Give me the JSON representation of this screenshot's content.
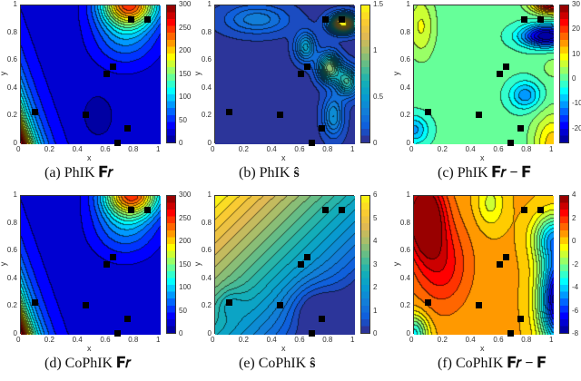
{
  "chart_data": [
    {
      "id": "a",
      "type": "heatmap",
      "caption": "(a) PhIK F_r",
      "caption_label": "(a) PhIK",
      "caption_math": "𝐅𝑟",
      "xlabel": "x",
      "ylabel": "y",
      "xlim": [
        0,
        1
      ],
      "ylim": [
        0,
        1
      ],
      "xticks": [
        "0",
        "0.2",
        "0.4",
        "0.6",
        "0.8",
        "1"
      ],
      "yticks": [
        "0",
        "0.2",
        "0.4",
        "0.6",
        "0.8",
        "1"
      ],
      "colorbar": {
        "range": [
          0,
          300
        ],
        "ticks": [
          "0",
          "50",
          "100",
          "150",
          "200",
          "250",
          "300"
        ]
      },
      "colormap": "jet"
    },
    {
      "id": "b",
      "type": "heatmap",
      "caption": "(b) PhIK ŝ",
      "caption_label": "(b) PhIK",
      "caption_math": "ŝ",
      "xlabel": "x",
      "ylabel": "y",
      "xlim": [
        0,
        1
      ],
      "ylim": [
        0,
        1
      ],
      "xticks": [
        "0",
        "0.2",
        "0.4",
        "0.6",
        "0.8",
        "1"
      ],
      "yticks": [
        "0",
        "0.2",
        "0.4",
        "0.6",
        "0.8",
        "1"
      ],
      "colorbar": {
        "range": [
          0,
          1.5
        ],
        "ticks": [
          "0",
          "0.5",
          "1",
          "1.5"
        ]
      },
      "colormap": "parula"
    },
    {
      "id": "c",
      "type": "heatmap",
      "caption": "(c) PhIK F_r − F",
      "caption_label": "(c) PhIK",
      "caption_math": "𝐅𝑟 − 𝐅",
      "xlabel": "x",
      "ylabel": "y",
      "xlim": [
        0,
        1
      ],
      "ylim": [
        0,
        1
      ],
      "xticks": [
        "0",
        "0.2",
        "0.4",
        "0.6",
        "0.8",
        "1"
      ],
      "yticks": [
        "0",
        "0.2",
        "0.4",
        "0.6",
        "0.8",
        "1"
      ],
      "colorbar": {
        "range": [
          -26,
          30
        ],
        "ticks": [
          "-20",
          "-10",
          "0",
          "10",
          "20",
          "30"
        ]
      },
      "colormap": "jet"
    },
    {
      "id": "d",
      "type": "heatmap",
      "caption": "(d) CoPhIK F_r",
      "caption_label": "(d) CoPhIK",
      "caption_math": "𝐅𝑟",
      "xlabel": "x",
      "ylabel": "y",
      "xlim": [
        0,
        1
      ],
      "ylim": [
        0,
        1
      ],
      "xticks": [
        "0",
        "0.2",
        "0.4",
        "0.6",
        "0.8",
        "1"
      ],
      "yticks": [
        "0",
        "0.2",
        "0.4",
        "0.6",
        "0.8",
        "1"
      ],
      "colorbar": {
        "range": [
          0,
          300
        ],
        "ticks": [
          "0",
          "50",
          "100",
          "150",
          "200",
          "250",
          "300"
        ]
      },
      "colormap": "jet"
    },
    {
      "id": "e",
      "type": "heatmap",
      "caption": "(e) CoPhIK ŝ",
      "caption_label": "(e) CoPhIK",
      "caption_math": "ŝ",
      "xlabel": "x",
      "ylabel": "y",
      "xlim": [
        0,
        1
      ],
      "ylim": [
        0,
        1
      ],
      "xticks": [
        "0",
        "0.2",
        "0.4",
        "0.6",
        "0.8",
        "1"
      ],
      "yticks": [
        "0",
        "0.2",
        "0.4",
        "0.6",
        "0.8",
        "1"
      ],
      "colorbar": {
        "range": [
          0,
          6
        ],
        "ticks": [
          "0",
          "1",
          "2",
          "3",
          "4",
          "5",
          "6"
        ]
      },
      "colormap": "parula"
    },
    {
      "id": "f",
      "type": "heatmap",
      "caption": "(f) CoPhIK F_r − F",
      "caption_label": "(f) CoPhIK",
      "caption_math": "𝐅𝑟 − 𝐅",
      "xlabel": "x",
      "ylabel": "y",
      "xlim": [
        0,
        1
      ],
      "ylim": [
        0,
        1
      ],
      "xticks": [
        "0",
        "0.2",
        "0.4",
        "0.6",
        "0.8",
        "1"
      ],
      "yticks": [
        "0",
        "0.2",
        "0.4",
        "0.6",
        "0.8",
        "1"
      ],
      "colorbar": {
        "range": [
          -8,
          4
        ],
        "ticks": [
          "-8",
          "-6",
          "-4",
          "-2",
          "0",
          "2",
          "4"
        ]
      },
      "colormap": "jet"
    }
  ],
  "observations": {
    "marker": "black-square",
    "points": [
      [
        0.1,
        0.22
      ],
      [
        0.47,
        0.2
      ],
      [
        0.62,
        0.5
      ],
      [
        0.67,
        0.55
      ],
      [
        0.8,
        0.9
      ],
      [
        0.92,
        0.9
      ],
      [
        0.77,
        0.1
      ],
      [
        0.7,
        0.0
      ]
    ]
  }
}
